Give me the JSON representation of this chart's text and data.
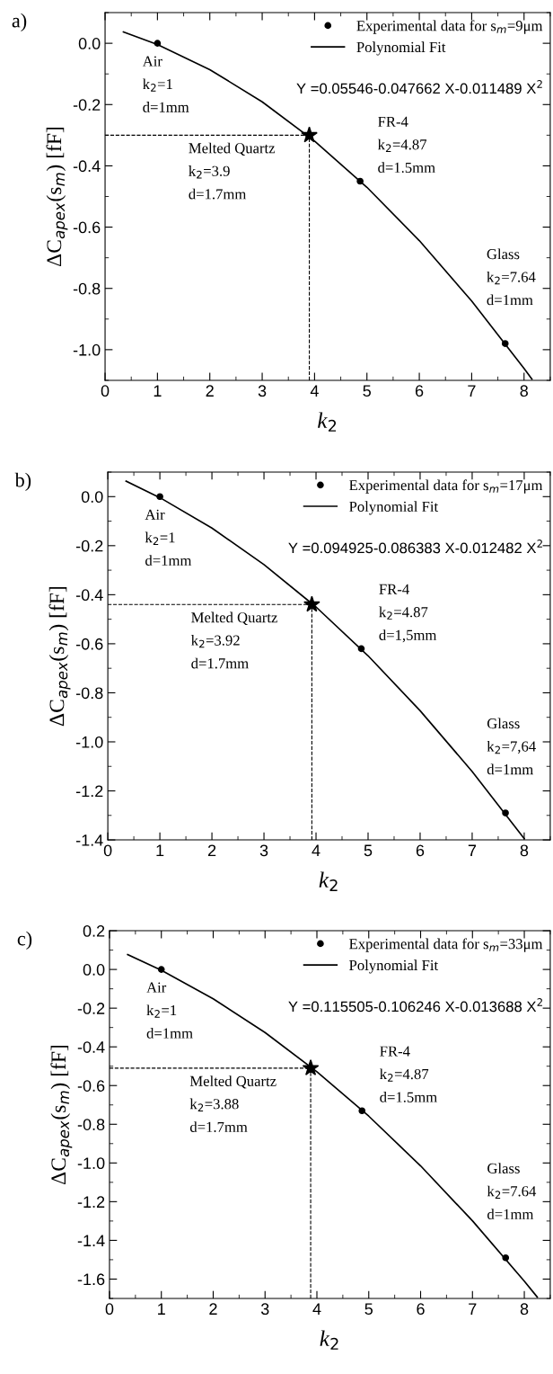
{
  "chart_data": [
    {
      "type": "line",
      "title": "a)",
      "xlabel": "k$_{2}$",
      "ylabel": "ΔC$_{apex}$(s$_{m}$) [fF]",
      "xlim": [
        0,
        8.5
      ],
      "xticks": [
        0,
        1,
        2,
        3,
        4,
        5,
        6,
        7,
        8
      ],
      "ylim": [
        -1.1,
        0.1
      ],
      "yticks": [
        {
          "value": 0,
          "label": "0.0"
        },
        {
          "value": -0.2,
          "label": "-0.2"
        },
        {
          "value": -0.4,
          "label": "-0.4"
        },
        {
          "value": -0.6,
          "label": "-0.6"
        },
        {
          "value": -0.8,
          "label": "-0.8"
        },
        {
          "value": -1,
          "label": "-1.0"
        }
      ],
      "legend": "top right",
      "grid": false,
      "series": [
        {
          "name": "Experimental data for s$_{m}$=9μm",
          "type": "scatter",
          "marker": "circle",
          "color": "#000000",
          "x": [
            1,
            4.87,
            7.64
          ],
          "values": [
            0.0,
            -0.45,
            -0.98
          ]
        },
        {
          "name": "Polynomial Fit",
          "type": "line",
          "marker": "none",
          "line_style": "solid",
          "color": "#000000",
          "x": [
            0.35,
            1,
            2,
            3,
            4,
            5,
            6,
            7,
            8,
            8.15
          ],
          "values": [
            0.037,
            -0.004,
            -0.086,
            -0.191,
            -0.319,
            -0.47,
            -0.644,
            -0.841,
            -1.061,
            -1.096
          ]
        },
        {
          "type": "scatter",
          "marker": "star",
          "color": "#000000",
          "x": [
            3.9
          ],
          "values": [
            -0.3
          ]
        }
      ],
      "ref_lines": [
        {
          "axis": "x",
          "value": 3.9,
          "line_style": "dashed",
          "color": "#000000"
        },
        {
          "axis": "y",
          "value": -0.3,
          "line_style": "dashed",
          "color": "#000000"
        }
      ],
      "annotations": [
        "Y =0.05546-0.047662 X-0.011489 X$^{2}$",
        {
          "text": "Air\nk$_{2}$=1\nd=1mm",
          "x": 1,
          "y": 0.0
        },
        {
          "text": "Melted Quartz\nk$_{2}$=3.9\nd=1.7mm",
          "x": 3.9,
          "y": -0.3
        },
        {
          "text": "FR-4\nk$_{2}$=4.87\nd=1.5mm",
          "x": 4.87,
          "y": -0.45
        },
        {
          "text": "Glass\nk$_{2}$=7.64\nd=1mm",
          "x": 7.64,
          "y": -0.98
        }
      ]
    },
    {
      "type": "line",
      "title": "b)",
      "xlabel": "k$_{2}$",
      "ylabel": "ΔC$_{apex}$(s$_{m}$) [fF]",
      "xlim": [
        0,
        8.5
      ],
      "xticks": [
        0,
        1,
        2,
        3,
        4,
        5,
        6,
        7,
        8
      ],
      "ylim": [
        -1.4,
        0.1
      ],
      "yticks": [
        {
          "value": 0,
          "label": "0.0"
        },
        {
          "value": -0.2,
          "label": "-0.2"
        },
        {
          "value": -0.4,
          "label": "-0.4"
        },
        {
          "value": -0.6,
          "label": "-0.6"
        },
        {
          "value": -0.8,
          "label": "-0.8"
        },
        {
          "value": -1,
          "label": "-1.0"
        },
        {
          "value": -1.2,
          "label": "-1.2"
        },
        {
          "value": -1.4,
          "label": "-1.4"
        }
      ],
      "legend": "top right",
      "grid": false,
      "series": [
        {
          "name": "Experimental data for s$_{m}$=17μm",
          "type": "scatter",
          "marker": "circle",
          "color": "#000000",
          "x": [
            1,
            4.87,
            7.64
          ],
          "values": [
            0.0,
            -0.62,
            -1.29
          ]
        },
        {
          "name": "Polynomial Fit",
          "type": "line",
          "marker": "none",
          "line_style": "solid",
          "color": "#000000",
          "x": [
            0.35,
            1,
            2,
            3,
            4,
            5,
            6,
            7,
            8
          ],
          "values": [
            0.063,
            -0.004,
            -0.128,
            -0.277,
            -0.45,
            -0.649,
            -0.873,
            -1.121,
            -1.395
          ]
        },
        {
          "type": "scatter",
          "marker": "star",
          "color": "#000000",
          "x": [
            3.92
          ],
          "values": [
            -0.44
          ]
        }
      ],
      "ref_lines": [
        {
          "axis": "x",
          "value": 3.92,
          "line_style": "dashed",
          "color": "#000000"
        },
        {
          "axis": "y",
          "value": -0.44,
          "line_style": "dashed",
          "color": "#000000"
        }
      ],
      "annotations": [
        "Y =0.094925-0.086383 X-0.012482 X$^{2}$",
        {
          "text": "Air\nk$_{2}$=1\nd=1mm",
          "x": 1,
          "y": 0.0
        },
        {
          "text": "Melted Quartz\nk$_{2}$=3.92\nd=1.7mm",
          "x": 3.92,
          "y": -0.44
        },
        {
          "text": "FR-4\nk$_{2}$=4.87\nd=1,5mm",
          "x": 4.87,
          "y": -0.62
        },
        {
          "text": "Glass\nk$_{2}$=7,64\nd=1mm",
          "x": 7.64,
          "y": -1.29
        }
      ]
    },
    {
      "type": "line",
      "title": "c)",
      "xlabel": "k$_{2}$",
      "ylabel": "ΔC$_{apex}$(s$_{m}$) [fF]",
      "xlim": [
        0,
        8.5
      ],
      "xticks": [
        0,
        1,
        2,
        3,
        4,
        5,
        6,
        7,
        8
      ],
      "ylim": [
        -1.7,
        0.2
      ],
      "yticks": [
        {
          "value": 0.2,
          "label": "0.2"
        },
        {
          "value": 0,
          "label": "0.0"
        },
        {
          "value": -0.2,
          "label": "-0.2"
        },
        {
          "value": -0.4,
          "label": "-0.4"
        },
        {
          "value": -0.6,
          "label": "-0.6"
        },
        {
          "value": -0.8,
          "label": "-0.8"
        },
        {
          "value": -1,
          "label": "-1.0"
        },
        {
          "value": -1.2,
          "label": "-1.2"
        },
        {
          "value": -1.4,
          "label": "-1.4"
        },
        {
          "value": -1.6,
          "label": "-1.6"
        }
      ],
      "legend": "top right",
      "grid": false,
      "series": [
        {
          "name": "Experimental data for s$_{m}$=33μm",
          "type": "scatter",
          "marker": "circle",
          "color": "#000000",
          "x": [
            1,
            4.87,
            7.64
          ],
          "values": [
            0.0,
            -0.73,
            -1.49
          ]
        },
        {
          "name": "Polynomial Fit",
          "type": "line",
          "marker": "none",
          "line_style": "solid",
          "color": "#000000",
          "x": [
            0.35,
            1,
            2,
            3,
            4,
            5,
            6,
            7,
            8,
            8.25
          ],
          "values": [
            0.077,
            -0.004,
            -0.152,
            -0.326,
            -0.529,
            -0.758,
            -1.015,
            -1.299,
            -1.611,
            -1.693
          ]
        },
        {
          "type": "scatter",
          "marker": "star",
          "color": "#000000",
          "x": [
            3.88
          ],
          "values": [
            -0.51
          ]
        }
      ],
      "ref_lines": [
        {
          "axis": "x",
          "value": 3.88,
          "line_style": "dashed",
          "color": "#000000"
        },
        {
          "axis": "y",
          "value": -0.51,
          "line_style": "dashed",
          "color": "#000000"
        }
      ],
      "annotations": [
        "Y =0.115505-0.106246 X-0.013688 X$^{2}$",
        {
          "text": "Air\nk$_{2}$=1\nd=1mm",
          "x": 1,
          "y": 0.0
        },
        {
          "text": "Melted Quartz\nk$_{2}$=3.88\nd=1.7mm",
          "x": 3.88,
          "y": -0.51
        },
        {
          "text": "FR-4\nk$_{2}$=4.87\nd=1.5mm",
          "x": 4.87,
          "y": -0.73
        },
        {
          "text": "Glass\nk$_{2}$=7.64\nd=1mm",
          "x": 7.64,
          "y": -1.49
        }
      ]
    }
  ]
}
